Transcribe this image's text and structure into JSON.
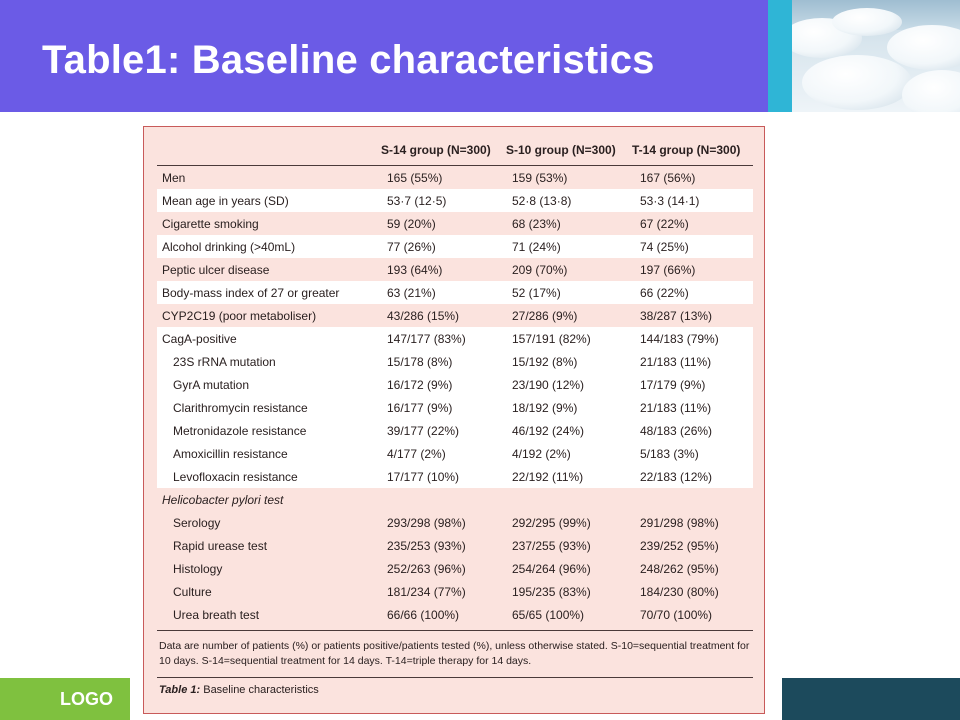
{
  "slide": {
    "title": "Table1: Baseline characteristics",
    "logo": "LOGO"
  },
  "table": {
    "headers": [
      "",
      "S-14 group (N=300)",
      "S-10 group (N=300)",
      "T-14 group (N=300)"
    ],
    "rows": [
      {
        "label": "Men",
        "v1": "165 (55%)",
        "v2": "159 (53%)",
        "v3": "167 (56%)"
      },
      {
        "label": "Mean age in years (SD)",
        "v1": "53·7 (12·5)",
        "v2": "52·8 (13·8)",
        "v3": "53·3 (14·1)"
      },
      {
        "label": "Cigarette smoking",
        "v1": "59 (20%)",
        "v2": "68 (23%)",
        "v3": "67 (22%)"
      },
      {
        "label": "Alcohol drinking (>40mL)",
        "v1": "77 (26%)",
        "v2": "71 (24%)",
        "v3": "74 (25%)"
      },
      {
        "label": "Peptic ulcer disease",
        "v1": "193 (64%)",
        "v2": "209 (70%)",
        "v3": "197 (66%)"
      },
      {
        "label": "Body-mass index of 27 or greater",
        "v1": "63 (21%)",
        "v2": "52 (17%)",
        "v3": "66 (22%)"
      },
      {
        "label": "CYP2C19 (poor metaboliser)",
        "v1": "43/286 (15%)",
        "v2": "27/286 (9%)",
        "v3": "38/287 (13%)"
      },
      {
        "label": "CagA-positive",
        "v1": "147/177 (83%)",
        "v2": "157/191 (82%)",
        "v3": "144/183 (79%)"
      },
      {
        "label": "23S rRNA mutation",
        "v1": "15/178 (8%)",
        "v2": "15/192 (8%)",
        "v3": "21/183 (11%)"
      },
      {
        "label": "GyrA mutation",
        "v1": "16/172 (9%)",
        "v2": "23/190 (12%)",
        "v3": "17/179 (9%)"
      },
      {
        "label": "Clarithromycin resistance",
        "v1": "16/177 (9%)",
        "v2": "18/192 (9%)",
        "v3": "21/183 (11%)"
      },
      {
        "label": "Metronidazole resistance",
        "v1": "39/177 (22%)",
        "v2": "46/192 (24%)",
        "v3": "48/183 (26%)"
      },
      {
        "label": "Amoxicillin resistance",
        "v1": "4/177 (2%)",
        "v2": "4/192 (2%)",
        "v3": "5/183 (3%)"
      },
      {
        "label": "Levofloxacin resistance",
        "v1": "17/177 (10%)",
        "v2": "22/192 (11%)",
        "v3": "22/183 (12%)"
      },
      {
        "label": "Helicobacter pylori test",
        "v1": "",
        "v2": "",
        "v3": ""
      },
      {
        "label": "Serology",
        "v1": "293/298 (98%)",
        "v2": "292/295 (99%)",
        "v3": "291/298 (98%)"
      },
      {
        "label": "Rapid urease test",
        "v1": "235/253 (93%)",
        "v2": "237/255 (93%)",
        "v3": "239/252 (95%)"
      },
      {
        "label": "Histology",
        "v1": "252/263 (96%)",
        "v2": "254/264 (96%)",
        "v3": "248/262 (95%)"
      },
      {
        "label": "Culture",
        "v1": "181/234 (77%)",
        "v2": "195/235 (83%)",
        "v3": "184/230 (80%)"
      },
      {
        "label": "Urea breath test",
        "v1": "66/66 (100%)",
        "v2": "65/65 (100%)",
        "v3": "70/70 (100%)"
      }
    ],
    "footnote": "Data are number of patients (%) or patients positive/patients tested (%), unless otherwise stated. S-10=sequential treatment for 10 days. S-14=sequential treatment for 14 days. T-14=triple therapy for 14 days.",
    "caption_prefix": "Table 1:",
    "caption_text": " Baseline characteristics"
  },
  "colors": {
    "header_bg": "#6b5be6",
    "accent": "#2fb5d6",
    "table_bg": "#fbe3de",
    "table_border": "#c85a5a",
    "footer_green": "#7fc13f",
    "footer_dark": "#1c4a5c"
  }
}
